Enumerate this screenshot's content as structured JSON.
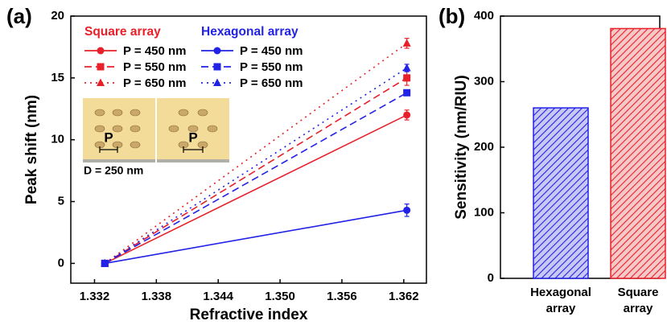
{
  "chart_data": [
    {
      "type": "line",
      "panel": "(a)",
      "xlabel": "Refractive index",
      "ylabel": "Peak shift (nm)",
      "x": [
        1.333,
        1.3623
      ],
      "xlim": [
        1.3297,
        1.3642
      ],
      "xticks": [
        1.332,
        1.338,
        1.344,
        {
          "value": 1.35,
          "label": "1.350"
        },
        1.356,
        1.362
      ],
      "ylim": [
        -1.6,
        20
      ],
      "yticks": [
        0,
        5,
        10,
        15,
        20
      ],
      "legend_groups": [
        {
          "title": "Square array",
          "color": "#e8202a"
        },
        {
          "title": "Hexagonal array",
          "color": "#2222e6"
        }
      ],
      "series": [
        {
          "name": "P = 450 nm",
          "group": 0,
          "color": "#e8202a",
          "dash": "solid",
          "marker": "circle",
          "values": [
            0,
            12.0
          ],
          "errors": [
            0,
            0.4
          ]
        },
        {
          "name": "P = 550 nm",
          "group": 0,
          "color": "#e8202a",
          "dash": "dashed",
          "marker": "square",
          "values": [
            0,
            15.0
          ],
          "errors": [
            0,
            0.6
          ]
        },
        {
          "name": "P = 650 nm",
          "group": 0,
          "color": "#e8202a",
          "dash": "dotted",
          "marker": "triangle",
          "values": [
            0,
            17.8
          ],
          "errors": [
            0,
            0.4
          ]
        },
        {
          "name": "P = 450 nm",
          "group": 1,
          "color": "#2222e6",
          "dash": "solid",
          "marker": "circle",
          "values": [
            0,
            4.3
          ],
          "errors": [
            0,
            0.5
          ]
        },
        {
          "name": "P = 550 nm",
          "group": 1,
          "color": "#2222e6",
          "dash": "dashed",
          "marker": "square",
          "values": [
            0,
            13.8
          ],
          "errors": [
            0,
            0
          ]
        },
        {
          "name": "P = 650 nm",
          "group": 1,
          "color": "#2222e6",
          "dash": "dotted",
          "marker": "triangle",
          "values": [
            0,
            15.8
          ],
          "errors": [
            0,
            0.3
          ]
        }
      ],
      "inset": {
        "diameter_label": "D = 250 nm",
        "pitch_labels": [
          "P",
          "P"
        ]
      }
    },
    {
      "type": "bar",
      "panel": "(b)",
      "ylabel": "Sensitivity (nm/RIU)",
      "categories": [
        "Hexagonal array",
        "Square array"
      ],
      "values": [
        260,
        381
      ],
      "colors": [
        "#2222e6",
        "#e8202a"
      ],
      "fills": [
        "#c8c8f4",
        "#f6c8c8"
      ],
      "hatch": true,
      "ylim": [
        0,
        400
      ],
      "yticks": [
        0,
        100,
        200,
        300,
        400
      ]
    }
  ]
}
